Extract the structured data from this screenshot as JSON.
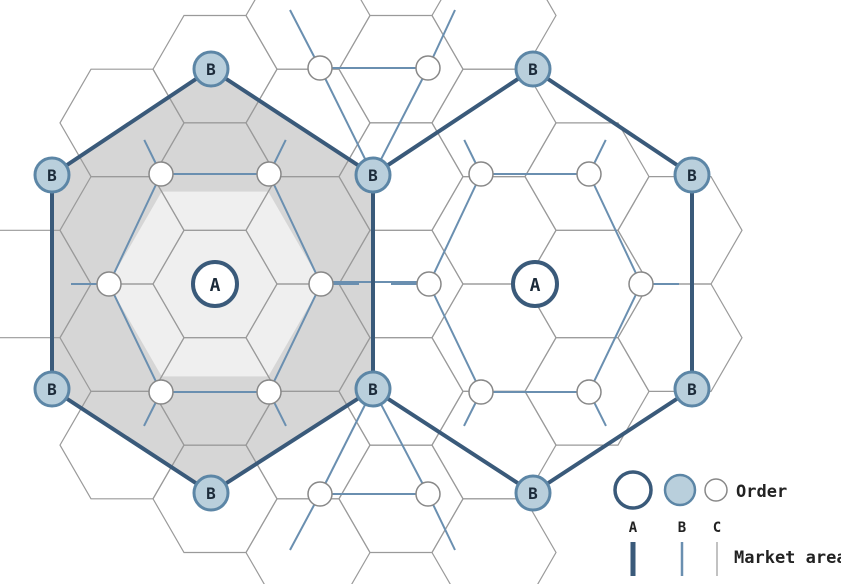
{
  "diagram": {
    "center_labels": {
      "a": "A",
      "b": "B"
    },
    "legend": {
      "order_label": "Order",
      "letters": [
        "A",
        "B",
        "C"
      ],
      "market_area_label": "Market area"
    },
    "colors": {
      "a_stroke": "#3a5a7a",
      "b_fill": "#b9cfdc",
      "b_stroke": "#5c86a6",
      "c_stroke": "#888888",
      "network": "#6a8fb0",
      "grid": "#9a9a9a",
      "shade_dark": "#d6d6d6",
      "shade_light": "#efefef"
    }
  }
}
